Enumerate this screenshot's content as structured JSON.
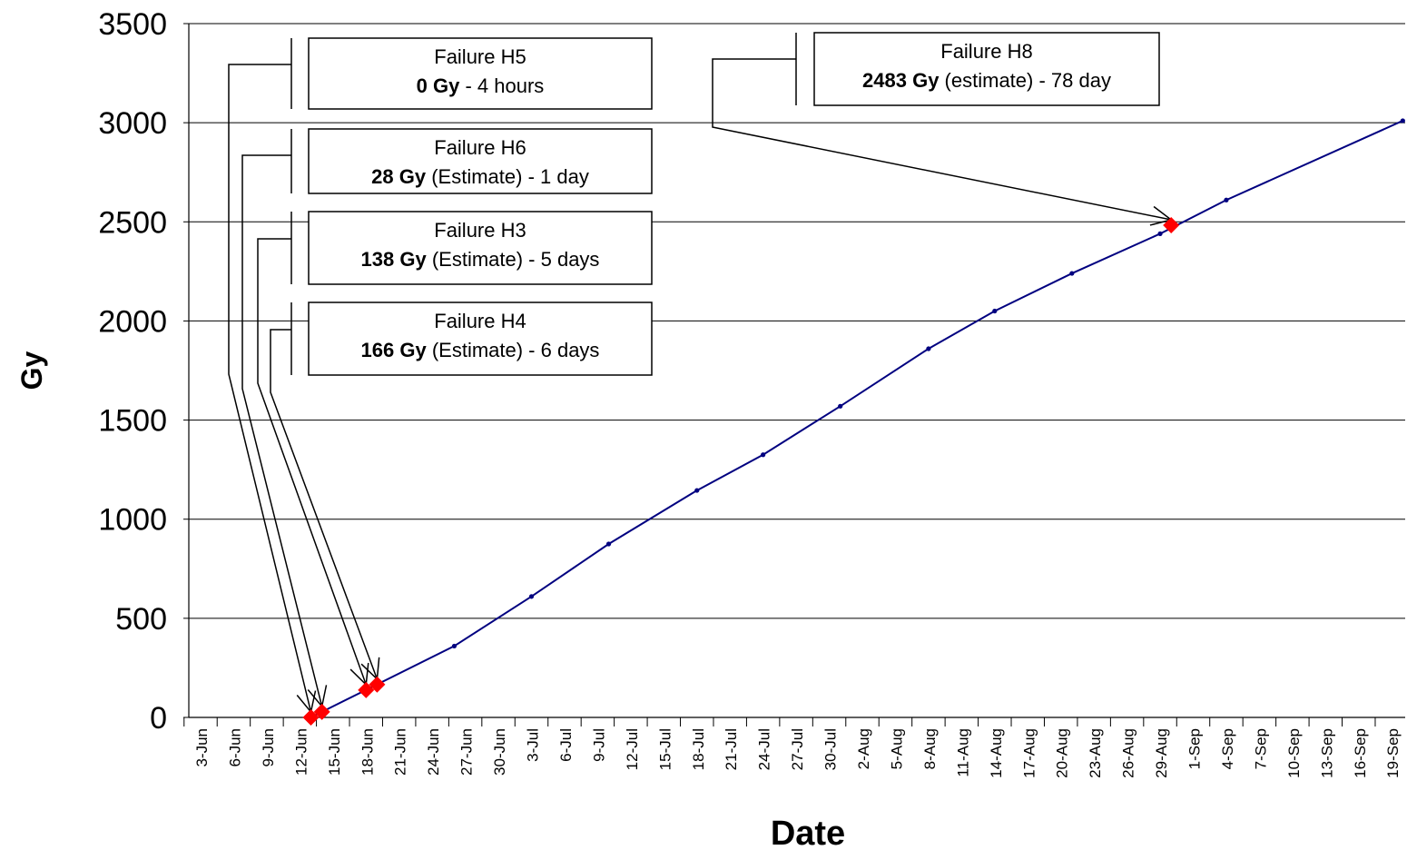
{
  "chart_data": {
    "type": "line",
    "title": "",
    "xlabel": "Date",
    "ylabel": "Gy",
    "ylim": [
      0,
      3500
    ],
    "yticks": [
      0,
      500,
      1000,
      1500,
      2000,
      2500,
      3000,
      3500
    ],
    "grid": "horizontal",
    "x_start_date": "2008-06-03",
    "xticks": [
      "3-Jun",
      "6-Jun",
      "9-Jun",
      "12-Jun",
      "15-Jun",
      "18-Jun",
      "21-Jun",
      "24-Jun",
      "27-Jun",
      "30-Jun",
      "3-Jul",
      "6-Jul",
      "9-Jul",
      "12-Jul",
      "15-Jul",
      "18-Jul",
      "21-Jul",
      "24-Jul",
      "27-Jul",
      "30-Jul",
      "2-Aug",
      "5-Aug",
      "8-Aug",
      "11-Aug",
      "14-Aug",
      "17-Aug",
      "20-Aug",
      "23-Aug",
      "26-Aug",
      "29-Aug",
      "1-Sep",
      "4-Sep",
      "7-Sep",
      "10-Sep",
      "13-Sep",
      "16-Sep",
      "19-Sep"
    ],
    "series": [
      {
        "name": "",
        "color": "#000080",
        "points": [
          {
            "x": "2008-06-13",
            "y": 0
          },
          {
            "x": "2008-06-14",
            "y": 28
          },
          {
            "x": "2008-06-26",
            "y": 360
          },
          {
            "x": "2008-07-03",
            "y": 610
          },
          {
            "x": "2008-07-10",
            "y": 875
          },
          {
            "x": "2008-07-18",
            "y": 1145
          },
          {
            "x": "2008-07-24",
            "y": 1325
          },
          {
            "x": "2008-07-31",
            "y": 1570
          },
          {
            "x": "2008-08-08",
            "y": 1860
          },
          {
            "x": "2008-08-14",
            "y": 2050
          },
          {
            "x": "2008-08-21",
            "y": 2240
          },
          {
            "x": "2008-08-29",
            "y": 2440
          },
          {
            "x": "2008-09-04",
            "y": 2610
          },
          {
            "x": "2008-09-20",
            "y": 3010
          }
        ]
      }
    ],
    "failures": [
      {
        "id": "H5",
        "title": "Failure H5",
        "dose": "0 Gy",
        "detail": "  - 4 hours",
        "x": "2008-06-13",
        "y": 0
      },
      {
        "id": "H6",
        "title": "Failure H6",
        "dose": "28 Gy",
        "detail": " (Estimate) - 1 day",
        "x": "2008-06-14",
        "y": 28
      },
      {
        "id": "H3",
        "title": "Failure H3",
        "dose": "138 Gy",
        "detail": " (Estimate) - 5 days",
        "x": "2008-06-18",
        "y": 138
      },
      {
        "id": "H4",
        "title": "Failure H4",
        "dose": "166 Gy",
        "detail": " (Estimate) - 6 days",
        "x": "2008-06-19",
        "y": 166
      },
      {
        "id": "H8",
        "title": "Failure H8",
        "dose": "2483 Gy",
        "detail": " (estimate) - 78 day",
        "x": "2008-08-30",
        "y": 2483
      }
    ],
    "marker_color": "#ff0000"
  }
}
